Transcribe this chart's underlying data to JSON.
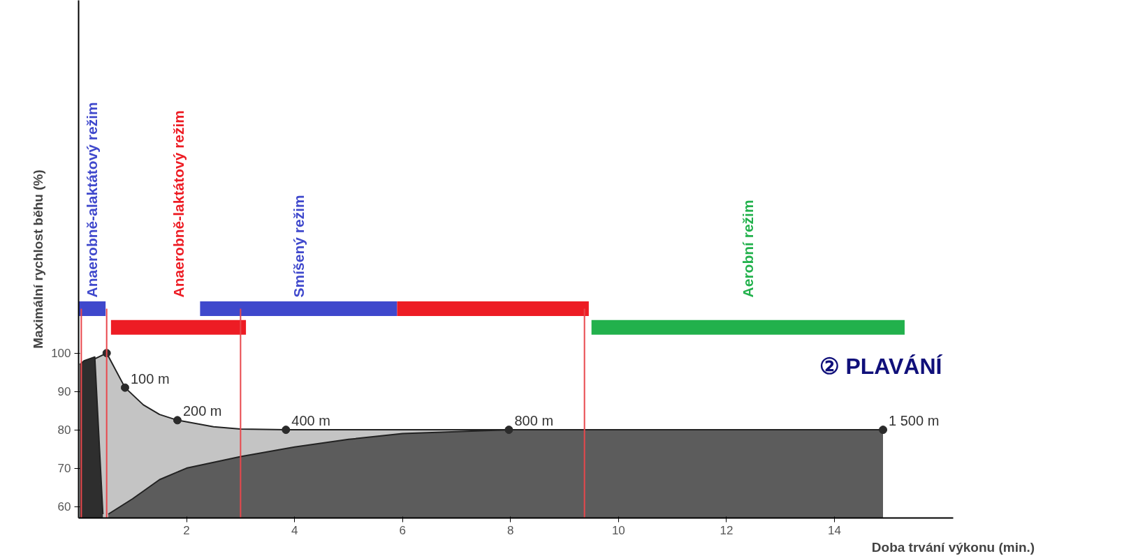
{
  "chart_data": {
    "type": "area",
    "title": "② PLAVÁNÍ",
    "xlabel": "Doba trvání výkonu (min.)",
    "ylabel": "Maximální rychlost běhu (%)",
    "xlim": [
      0,
      16.2
    ],
    "ylim": [
      57,
      192
    ],
    "xticks": [
      2,
      4,
      6,
      8,
      10,
      12,
      14
    ],
    "yticks": [
      60,
      70,
      80,
      90,
      100
    ],
    "grid": false,
    "series": [
      {
        "color": "#c4c4c4",
        "x": [
          0.05,
          0.3,
          0.52,
          0.86,
          1.2,
          1.5,
          1.83,
          2.5,
          3.0,
          3.84,
          5,
          8,
          14.9
        ],
        "values": [
          97,
          98.5,
          100,
          91,
          86.5,
          84,
          82.5,
          80.8,
          80.2,
          80,
          80,
          80,
          80
        ]
      },
      {
        "color": "#5c5c5c",
        "x": [
          0.55,
          1.0,
          1.5,
          2.0,
          3.0,
          4.0,
          5.0,
          6.0,
          8.0,
          14.9
        ],
        "values": [
          58,
          62,
          67,
          70,
          73,
          75.5,
          77.5,
          79,
          80,
          80
        ]
      },
      {
        "color": "#2e2e2e",
        "x": [
          0.02,
          0.1,
          0.3,
          0.45
        ],
        "values": [
          97,
          98,
          99,
          58
        ]
      },
      {
        "type": "scatter",
        "color": "#2b2b2b",
        "marker": "circle",
        "x": [
          0.52,
          0.86,
          1.83,
          3.84,
          7.97,
          14.9
        ],
        "values": [
          100,
          91,
          82.5,
          80,
          80,
          80
        ]
      },
      {
        "type": "line",
        "name": "Anaerobně-alaktátový režim",
        "color": "#3f48cc",
        "x": [
          0,
          0.5
        ],
        "values": [
          111.6,
          111.6
        ]
      },
      {
        "type": "line",
        "name": "Smíšený režim",
        "color": "#3f48cc",
        "x": [
          2.25,
          5.9
        ],
        "values": [
          111.6,
          111.6
        ]
      },
      {
        "type": "line",
        "color": "#ed1c24",
        "x": [
          5.9,
          9.45
        ],
        "values": [
          111.6,
          111.6
        ]
      },
      {
        "type": "line",
        "name": "Anaerobně-laktátový režim",
        "color": "#ed1c24",
        "x": [
          0.6,
          3.1
        ],
        "values": [
          106.7,
          106.7
        ]
      },
      {
        "type": "line",
        "name": "Aerobní režim",
        "color": "#22b14c",
        "x": [
          9.5,
          15.3
        ],
        "values": [
          106.7,
          106.7
        ]
      }
    ],
    "annotations": [
      {
        "text": "100 m",
        "x": 0.86,
        "y": 91
      },
      {
        "text": "200 m",
        "x": 1.83,
        "y": 82.5
      },
      {
        "text": "400 m",
        "x": 3.84,
        "y": 80
      },
      {
        "text": "800 m",
        "x": 7.97,
        "y": 80
      },
      {
        "text": "1 500 m",
        "x": 14.9,
        "y": 80
      }
    ],
    "ref_lines": [
      {
        "axis": "x",
        "value": 0.05,
        "color": "#e8474c"
      },
      {
        "axis": "x",
        "value": 0.52,
        "color": "#e8474c"
      },
      {
        "axis": "x",
        "value": 3.0,
        "color": "#e8474c"
      },
      {
        "axis": "x",
        "value": 9.37,
        "color": "#e8474c"
      }
    ]
  }
}
